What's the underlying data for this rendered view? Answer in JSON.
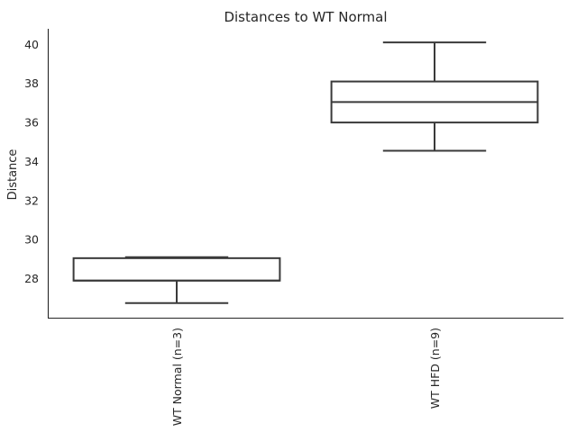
{
  "chart_data": {
    "type": "box",
    "title": "Distances to WT Normal",
    "xlabel": "",
    "ylabel": "Distance",
    "ylim": [
      26.0,
      40.8
    ],
    "yticks": [
      28,
      30,
      32,
      34,
      36,
      38,
      40
    ],
    "grid": false,
    "categories": [
      "WT Normal (n=3)",
      "WT HFD (n=9)"
    ],
    "boxes": [
      {
        "category": "WT Normal (n=3)",
        "whislo": 26.75,
        "q1": 27.9,
        "med": 27.9,
        "q3": 29.05,
        "whishi": 29.1
      },
      {
        "category": "WT HFD (n=9)",
        "whislo": 34.55,
        "q1": 36.0,
        "med": 37.05,
        "q3": 38.1,
        "whishi": 40.1
      }
    ],
    "colors": {
      "box_edge": "#3a3a3a",
      "box_fill": "#ffffff",
      "text": "#262626"
    }
  }
}
